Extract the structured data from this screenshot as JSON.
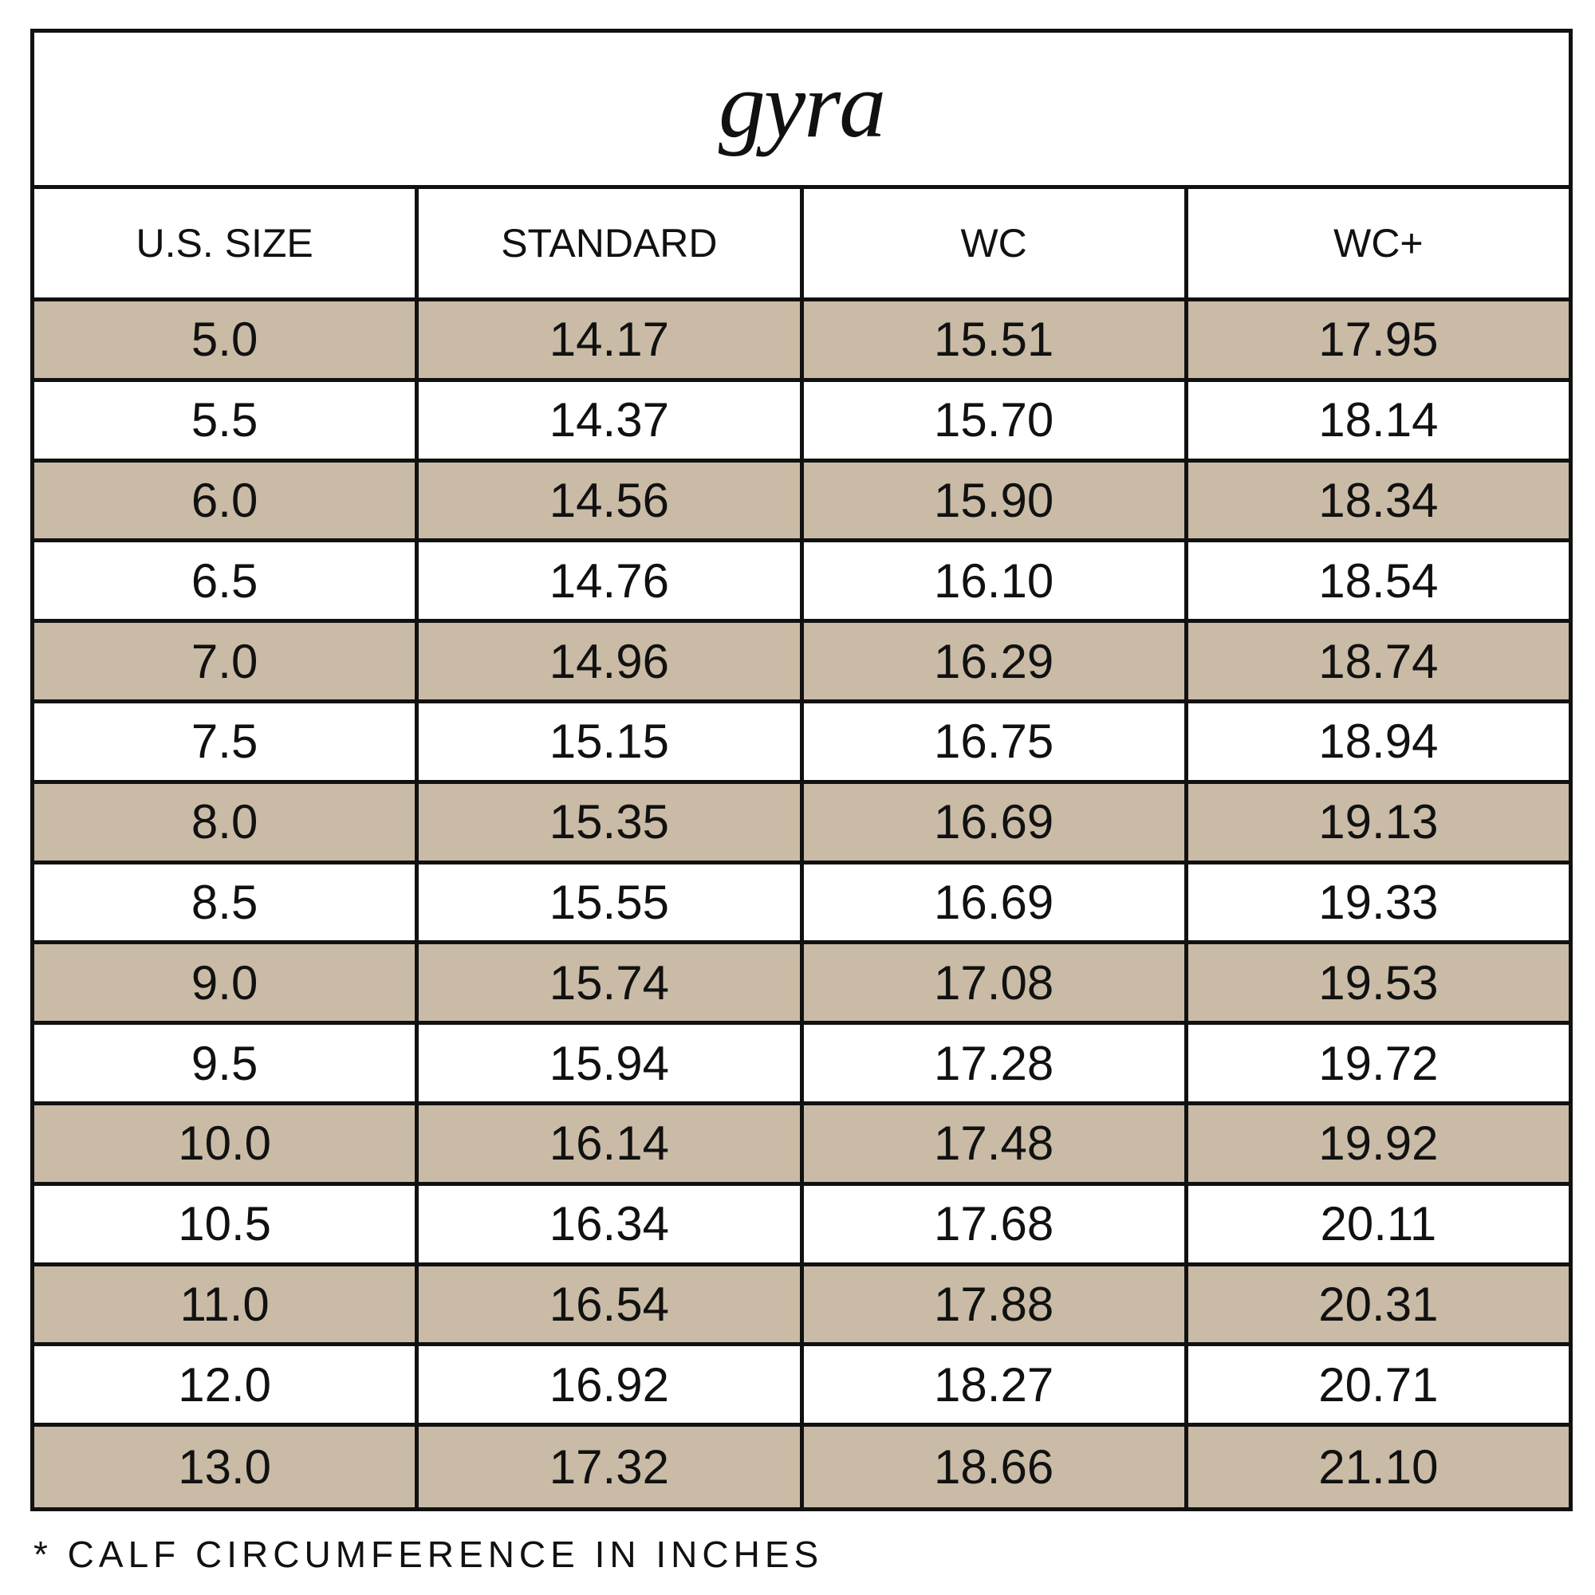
{
  "title": "gyra",
  "headers": [
    "U.S. SIZE",
    "STANDARD",
    "WC",
    "WC+"
  ],
  "rows": [
    [
      "5.0",
      "14.17",
      "15.51",
      "17.95"
    ],
    [
      "5.5",
      "14.37",
      "15.70",
      "18.14"
    ],
    [
      "6.0",
      "14.56",
      "15.90",
      "18.34"
    ],
    [
      "6.5",
      "14.76",
      "16.10",
      "18.54"
    ],
    [
      "7.0",
      "14.96",
      "16.29",
      "18.74"
    ],
    [
      "7.5",
      "15.15",
      "16.75",
      "18.94"
    ],
    [
      "8.0",
      "15.35",
      "16.69",
      "19.13"
    ],
    [
      "8.5",
      "15.55",
      "16.69",
      "19.33"
    ],
    [
      "9.0",
      "15.74",
      "17.08",
      "19.53"
    ],
    [
      "9.5",
      "15.94",
      "17.28",
      "19.72"
    ],
    [
      "10.0",
      "16.14",
      "17.48",
      "19.92"
    ],
    [
      "10.5",
      "16.34",
      "17.68",
      "20.11"
    ],
    [
      "11.0",
      "16.54",
      "17.88",
      "20.31"
    ],
    [
      "12.0",
      "16.92",
      "18.27",
      "20.71"
    ],
    [
      "13.0",
      "17.32",
      "18.66",
      "21.10"
    ]
  ],
  "footnote": "* CALF CIRCUMFERENCE IN INCHES",
  "colors": {
    "shaded_row": "#c9bba5",
    "border": "#111111"
  }
}
